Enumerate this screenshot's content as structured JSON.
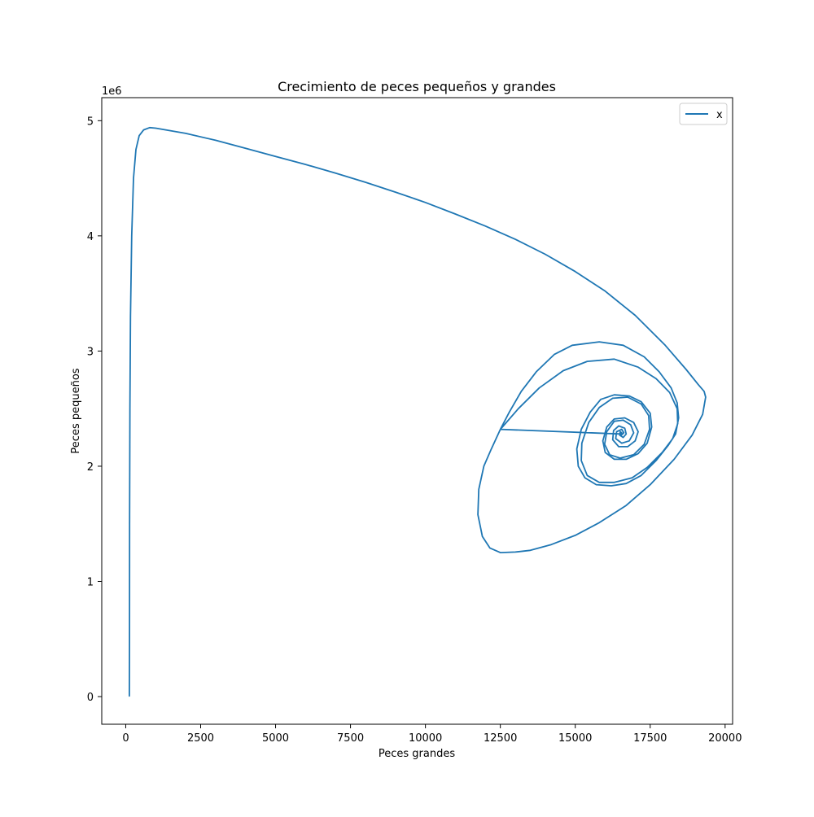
{
  "chart_data": {
    "type": "line",
    "title": "Crecimiento de peces pequeños y grandes",
    "xlabel": "Peces grandes",
    "ylabel": "Peces pequeños",
    "y_offset_label": "1e6",
    "xlim": [
      -800,
      20250
    ],
    "ylim": [
      -240000,
      5200000
    ],
    "x_ticks": [
      0,
      2500,
      5000,
      7500,
      10000,
      12500,
      15000,
      17500,
      20000
    ],
    "x_tick_labels": [
      "0",
      "2500",
      "5000",
      "7500",
      "10000",
      "12500",
      "15000",
      "17500",
      "20000"
    ],
    "y_ticks": [
      0,
      1000000,
      2000000,
      3000000,
      4000000,
      5000000
    ],
    "y_tick_labels": [
      "0",
      "1",
      "2",
      "3",
      "4",
      "5"
    ],
    "grid": false,
    "legend_position": "top-right",
    "series": [
      {
        "name": "x",
        "color": "#1f77b4",
        "points": [
          [
            120,
            5000
          ],
          [
            125,
            500000
          ],
          [
            130,
            1500000
          ],
          [
            140,
            2500000
          ],
          [
            160,
            3300000
          ],
          [
            200,
            4000000
          ],
          [
            260,
            4500000
          ],
          [
            340,
            4750000
          ],
          [
            450,
            4870000
          ],
          [
            600,
            4920000
          ],
          [
            800,
            4940000
          ],
          [
            1000,
            4935000
          ],
          [
            2000,
            4890000
          ],
          [
            3000,
            4830000
          ],
          [
            4000,
            4760000
          ],
          [
            5000,
            4690000
          ],
          [
            6000,
            4620000
          ],
          [
            7000,
            4545000
          ],
          [
            8000,
            4465000
          ],
          [
            9000,
            4380000
          ],
          [
            10000,
            4290000
          ],
          [
            11000,
            4190000
          ],
          [
            12000,
            4085000
          ],
          [
            13000,
            3970000
          ],
          [
            14000,
            3840000
          ],
          [
            15000,
            3690000
          ],
          [
            16000,
            3520000
          ],
          [
            17000,
            3310000
          ],
          [
            18000,
            3050000
          ],
          [
            18700,
            2840000
          ],
          [
            19100,
            2710000
          ],
          [
            19300,
            2650000
          ],
          [
            19350,
            2600000
          ],
          [
            19250,
            2450000
          ],
          [
            18900,
            2270000
          ],
          [
            18300,
            2060000
          ],
          [
            17500,
            1840000
          ],
          [
            16700,
            1660000
          ],
          [
            15800,
            1510000
          ],
          [
            15000,
            1400000
          ],
          [
            14200,
            1320000
          ],
          [
            13500,
            1270000
          ],
          [
            13000,
            1255000
          ],
          [
            12500,
            1250000
          ],
          [
            12150,
            1290000
          ],
          [
            11900,
            1390000
          ],
          [
            11750,
            1580000
          ],
          [
            11780,
            1800000
          ],
          [
            11950,
            2000000
          ],
          [
            12200,
            2150000
          ],
          [
            12500,
            2320000
          ],
          [
            12800,
            2470000
          ],
          [
            13200,
            2650000
          ],
          [
            13700,
            2820000
          ],
          [
            14300,
            2970000
          ],
          [
            14900,
            3050000
          ],
          [
            15800,
            3080000
          ],
          [
            16600,
            3050000
          ],
          [
            17300,
            2950000
          ],
          [
            17800,
            2820000
          ],
          [
            18200,
            2680000
          ],
          [
            18400,
            2550000
          ],
          [
            18450,
            2420000
          ],
          [
            18350,
            2280000
          ],
          [
            18100,
            2180000
          ],
          [
            17700,
            2050000
          ],
          [
            17200,
            1920000
          ],
          [
            16700,
            1850000
          ],
          [
            16200,
            1830000
          ],
          [
            15700,
            1840000
          ],
          [
            15320,
            1900000
          ],
          [
            15100,
            2000000
          ],
          [
            15050,
            2150000
          ],
          [
            15200,
            2320000
          ],
          [
            15500,
            2470000
          ],
          [
            15850,
            2580000
          ],
          [
            16300,
            2620000
          ],
          [
            16800,
            2610000
          ],
          [
            17200,
            2560000
          ],
          [
            17500,
            2460000
          ],
          [
            17550,
            2340000
          ],
          [
            17400,
            2200000
          ],
          [
            17100,
            2110000
          ],
          [
            16700,
            2060000
          ],
          [
            16300,
            2060000
          ],
          [
            16000,
            2120000
          ],
          [
            15920,
            2220000
          ],
          [
            16050,
            2340000
          ],
          [
            16300,
            2410000
          ],
          [
            16650,
            2420000
          ],
          [
            16950,
            2380000
          ],
          [
            17100,
            2300000
          ],
          [
            17000,
            2220000
          ],
          [
            16750,
            2170000
          ],
          [
            16450,
            2170000
          ],
          [
            16250,
            2230000
          ],
          [
            16280,
            2310000
          ],
          [
            16450,
            2350000
          ],
          [
            16650,
            2330000
          ],
          [
            16700,
            2280000
          ],
          [
            16600,
            2250000
          ],
          [
            16480,
            2270000
          ],
          [
            16500,
            2300000
          ],
          [
            16550,
            2290000
          ],
          [
            16520,
            2280000
          ],
          [
            12500,
            2320000
          ],
          [
            13100,
            2500000
          ],
          [
            13800,
            2680000
          ],
          [
            14600,
            2830000
          ],
          [
            15400,
            2910000
          ],
          [
            16300,
            2930000
          ],
          [
            17100,
            2860000
          ],
          [
            17700,
            2760000
          ],
          [
            18150,
            2640000
          ],
          [
            18400,
            2500000
          ],
          [
            18420,
            2370000
          ],
          [
            18250,
            2240000
          ],
          [
            17900,
            2120000
          ],
          [
            17400,
            1990000
          ],
          [
            16900,
            1900000
          ],
          [
            16300,
            1860000
          ],
          [
            15800,
            1860000
          ],
          [
            15400,
            1920000
          ],
          [
            15200,
            2050000
          ],
          [
            15220,
            2200000
          ],
          [
            15450,
            2380000
          ],
          [
            15800,
            2510000
          ],
          [
            16250,
            2590000
          ],
          [
            16750,
            2600000
          ],
          [
            17200,
            2540000
          ],
          [
            17450,
            2440000
          ],
          [
            17480,
            2320000
          ],
          [
            17300,
            2190000
          ],
          [
            16950,
            2100000
          ],
          [
            16500,
            2070000
          ],
          [
            16150,
            2100000
          ],
          [
            15980,
            2190000
          ],
          [
            16050,
            2300000
          ],
          [
            16300,
            2390000
          ],
          [
            16600,
            2400000
          ],
          [
            16850,
            2360000
          ],
          [
            16950,
            2290000
          ],
          [
            16800,
            2220000
          ],
          [
            16550,
            2200000
          ],
          [
            16350,
            2240000
          ],
          [
            16380,
            2300000
          ],
          [
            16550,
            2320000
          ],
          [
            16620,
            2290000
          ],
          [
            16540,
            2270000
          ],
          [
            16500,
            2290000
          ]
        ]
      }
    ]
  }
}
